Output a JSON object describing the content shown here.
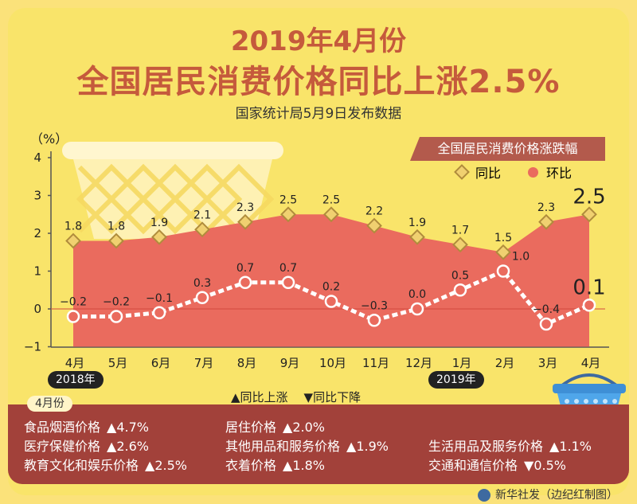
{
  "title_line1": "2019年4月份",
  "title_line2": "全国居民消费价格同比上涨2.5%",
  "subtitle": "国家统计局5月9日发布数据",
  "chart_data": {
    "type": "area",
    "title": "全国居民消费价格涨跌幅",
    "ylabel": "（%）",
    "ylim": [
      -1,
      4
    ],
    "yticks": [
      "4",
      "3",
      "2",
      "1",
      "0",
      "−1"
    ],
    "categories": [
      "4月",
      "5月",
      "6月",
      "7月",
      "8月",
      "9月",
      "10月",
      "11月",
      "12月",
      "1月",
      "2月",
      "3月",
      "4月"
    ],
    "year_labels": [
      "2018年",
      "2019年"
    ],
    "series": [
      {
        "name": "同比",
        "type": "area",
        "values": [
          1.8,
          1.8,
          1.9,
          2.1,
          2.3,
          2.5,
          2.5,
          2.2,
          1.9,
          1.7,
          1.5,
          2.3,
          2.5
        ],
        "labels": [
          "1.8",
          "1.8",
          "1.9",
          "2.1",
          "2.3",
          "2.5",
          "2.5",
          "2.2",
          "1.9",
          "1.7",
          "1.5",
          "2.3",
          "2.5"
        ]
      },
      {
        "name": "环比",
        "type": "line",
        "values": [
          -0.2,
          -0.2,
          -0.1,
          0.3,
          0.7,
          0.7,
          0.2,
          -0.3,
          0.0,
          0.5,
          1.0,
          -0.4,
          0.1
        ],
        "labels": [
          "−0.2",
          "−0.2",
          "−0.1",
          "0.3",
          "0.7",
          "0.7",
          "0.2",
          "−0.3",
          "0.0",
          "0.5",
          "1.0",
          "−0.4",
          "0.1"
        ]
      }
    ],
    "colors": {
      "area": "#ea6b5e",
      "line": "#ffffff",
      "diamond_fill": "#f0d070",
      "diamond_stroke": "#b08c3c"
    }
  },
  "legend": {
    "up": "▲同比上涨",
    "down": "▼同比下降"
  },
  "panel_tag": "4月份",
  "items": [
    {
      "name": "食品烟酒价格",
      "value": "▲4.7%"
    },
    {
      "name": "居住价格",
      "value": "▲2.0%"
    },
    {
      "name": "医疗保健价格",
      "value": "▲2.6%"
    },
    {
      "name": "其他用品和服务价格",
      "value": "▲1.9%"
    },
    {
      "name": "生活用品及服务价格",
      "value": "▲1.1%"
    },
    {
      "name": "教育文化和娱乐价格",
      "value": "▲2.5%"
    },
    {
      "name": "衣着价格",
      "value": "▲1.8%"
    },
    {
      "name": "交通和通信价格",
      "value": "▼0.5%"
    }
  ],
  "source": "新华社发（边纪红制图）"
}
